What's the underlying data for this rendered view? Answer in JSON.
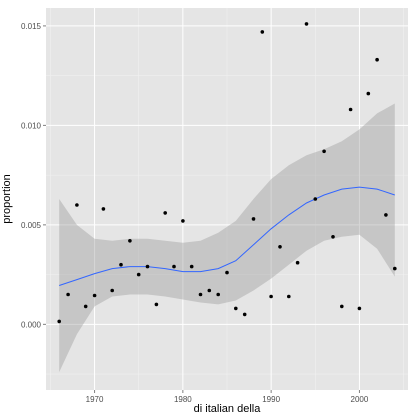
{
  "chart_data": {
    "type": "scatter",
    "xlabel": "di italian della",
    "ylabel": "proportion",
    "xlim": [
      1964.5,
      2005.5
    ],
    "ylim": [
      -0.0033,
      0.0159
    ],
    "x_ticks": [
      1970,
      1980,
      1990,
      2000
    ],
    "x_tick_labels": [
      "1970",
      "1980",
      "1990",
      "2000"
    ],
    "y_ticks": [
      0.0,
      0.005,
      0.01,
      0.015
    ],
    "y_tick_labels": [
      "0.000",
      "0.005",
      "0.010",
      "0.015"
    ],
    "grid": true,
    "legend": "none",
    "points": {
      "x": [
        1966,
        1967,
        1968,
        1969,
        1970,
        1971,
        1972,
        1973,
        1974,
        1975,
        1976,
        1977,
        1978,
        1979,
        1980,
        1981,
        1982,
        1983,
        1984,
        1985,
        1986,
        1987,
        1988,
        1989,
        1990,
        1991,
        1992,
        1993,
        1994,
        1995,
        1996,
        1997,
        1998,
        1999,
        2000,
        2001,
        2002,
        2003,
        2004
      ],
      "y": [
        0.00015,
        0.0015,
        0.006,
        0.0009,
        0.00145,
        0.0058,
        0.0017,
        0.003,
        0.0042,
        0.0025,
        0.0029,
        0.001,
        0.0056,
        0.0029,
        0.0052,
        0.0029,
        0.0015,
        0.0017,
        0.0015,
        0.0026,
        0.0008,
        0.0005,
        0.0053,
        0.0147,
        0.0014,
        0.0039,
        0.0014,
        0.0031,
        0.0151,
        0.0063,
        0.0087,
        0.0044,
        0.0009,
        0.0108,
        0.0008,
        0.0116,
        0.0133,
        0.0055,
        0.0028
      ]
    },
    "smooth": {
      "x": [
        1966,
        1968,
        1970,
        1972,
        1974,
        1976,
        1978,
        1980,
        1982,
        1984,
        1986,
        1988,
        1990,
        1992,
        1994,
        1996,
        1998,
        2000,
        2002,
        2004
      ],
      "y": [
        0.00195,
        0.00225,
        0.00255,
        0.0028,
        0.0029,
        0.0029,
        0.0028,
        0.00265,
        0.00265,
        0.0028,
        0.0032,
        0.004,
        0.0048,
        0.0055,
        0.0061,
        0.0065,
        0.0068,
        0.0069,
        0.0068,
        0.0065
      ],
      "lower": [
        -0.0024,
        -0.0005,
        0.0009,
        0.0014,
        0.0015,
        0.0015,
        0.0014,
        0.00125,
        0.0011,
        0.001,
        0.0012,
        0.0017,
        0.0023,
        0.003,
        0.0037,
        0.0042,
        0.0044,
        0.0045,
        0.0038,
        0.0024
      ],
      "upper": [
        0.0063,
        0.005,
        0.0043,
        0.0042,
        0.0043,
        0.0043,
        0.0042,
        0.0041,
        0.0042,
        0.0046,
        0.0052,
        0.0063,
        0.0073,
        0.008,
        0.0085,
        0.0088,
        0.0092,
        0.0098,
        0.0106,
        0.0111
      ]
    },
    "colors": {
      "panel": "#e5e5e5",
      "grid_major": "#ffffff",
      "grid_minor": "#f2f2f2",
      "ribbon": "#999999",
      "line": "#3366ff",
      "point": "#000000"
    }
  }
}
